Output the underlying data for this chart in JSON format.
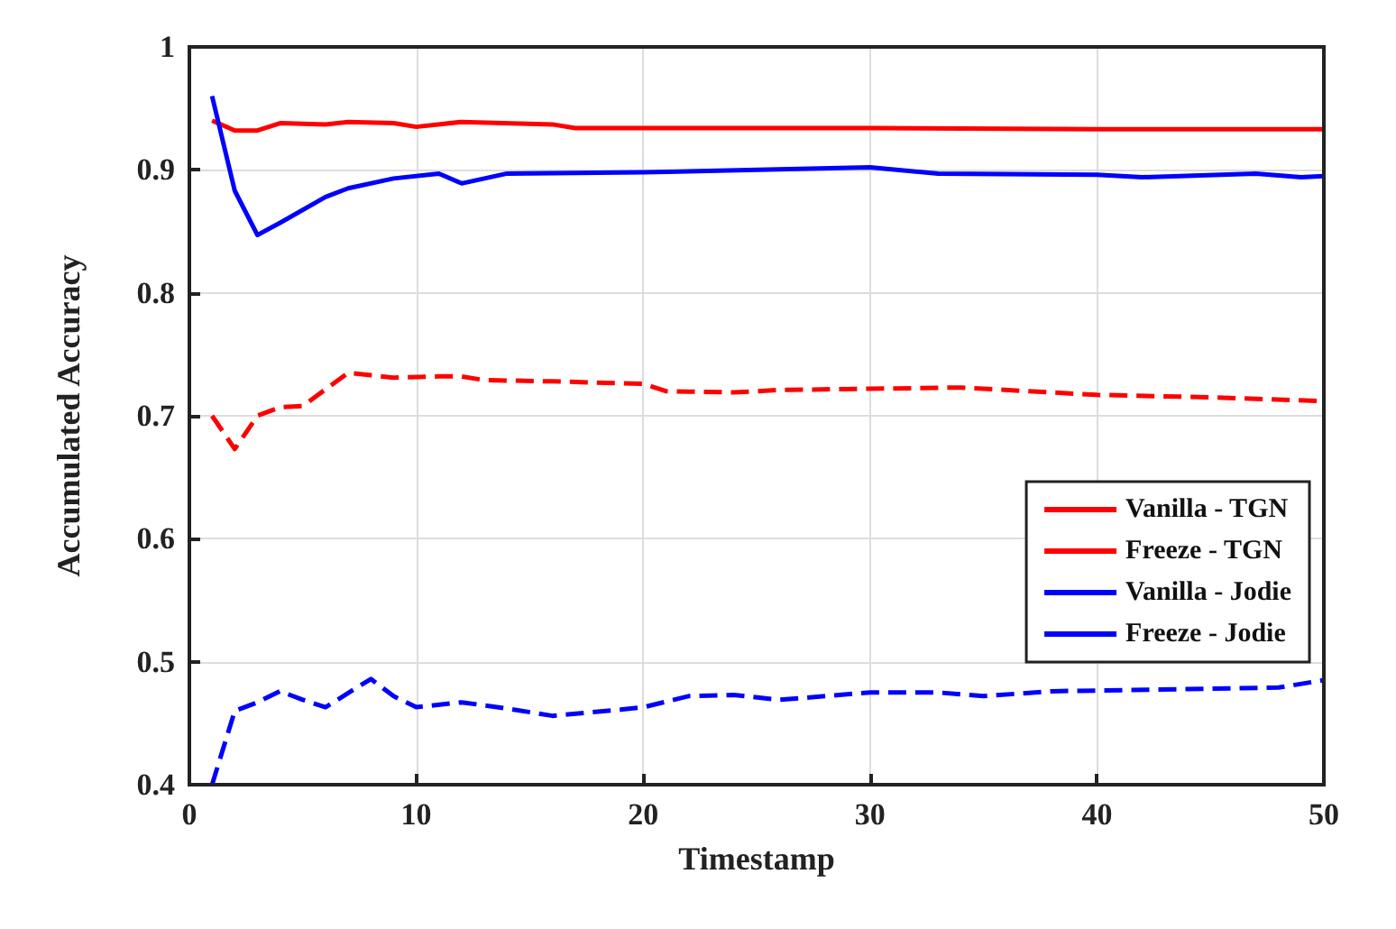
{
  "chart_data": {
    "type": "line",
    "xlabel": "Timestamp",
    "ylabel": "Accumulated Accuracy",
    "xlim": [
      0,
      50
    ],
    "xticks": [
      0,
      10,
      20,
      30,
      40,
      50
    ],
    "ylim": [
      0.4,
      1
    ],
    "yticks": [
      0.4,
      0.5,
      0.6,
      0.7,
      0.8,
      0.9,
      1
    ],
    "grid": true,
    "legend": "bottom right",
    "marker": "none",
    "series": [
      {
        "name": "Vanilla - TGN",
        "color": "#ff0000",
        "line_style": "solid",
        "x": [
          1,
          2,
          3,
          4,
          6,
          7,
          9,
          10,
          12,
          16,
          17,
          20,
          30,
          40,
          50
        ],
        "values": [
          0.94,
          0.932,
          0.932,
          0.938,
          0.937,
          0.939,
          0.938,
          0.935,
          0.939,
          0.937,
          0.934,
          0.934,
          0.934,
          0.933,
          0.933
        ]
      },
      {
        "name": "Freeze - TGN",
        "color": "#ff0000",
        "line_style": "dashed",
        "x": [
          1,
          2,
          3,
          4,
          5,
          7,
          8,
          9,
          11,
          12,
          13,
          16,
          20,
          21,
          24,
          26,
          30,
          34,
          37,
          40,
          45,
          50
        ],
        "values": [
          0.7,
          0.673,
          0.7,
          0.707,
          0.708,
          0.735,
          0.733,
          0.731,
          0.732,
          0.732,
          0.729,
          0.728,
          0.726,
          0.72,
          0.719,
          0.721,
          0.722,
          0.723,
          0.72,
          0.717,
          0.715,
          0.712
        ]
      },
      {
        "name": "Vanilla - Jodie",
        "color": "#0000ff",
        "line_style": "solid",
        "x": [
          1,
          2,
          3,
          4,
          6,
          7,
          9,
          11,
          12,
          14,
          20,
          30,
          33,
          40,
          42,
          47,
          49,
          50
        ],
        "values": [
          0.96,
          0.883,
          0.847,
          0.857,
          0.878,
          0.885,
          0.893,
          0.897,
          0.889,
          0.897,
          0.898,
          0.902,
          0.897,
          0.896,
          0.894,
          0.897,
          0.894,
          0.895
        ]
      },
      {
        "name": "Freeze - Jodie",
        "color": "#0000ff",
        "line_style": "dashed",
        "x": [
          1,
          2,
          3,
          4,
          5,
          6,
          8,
          9,
          10,
          12,
          14,
          16,
          19,
          20,
          22,
          24,
          26,
          30,
          33,
          35,
          38,
          45,
          48,
          50
        ],
        "values": [
          0.4,
          0.46,
          0.467,
          0.476,
          0.469,
          0.463,
          0.486,
          0.472,
          0.463,
          0.467,
          0.462,
          0.456,
          0.461,
          0.463,
          0.472,
          0.473,
          0.469,
          0.475,
          0.475,
          0.472,
          0.476,
          0.478,
          0.479,
          0.485
        ]
      }
    ]
  }
}
